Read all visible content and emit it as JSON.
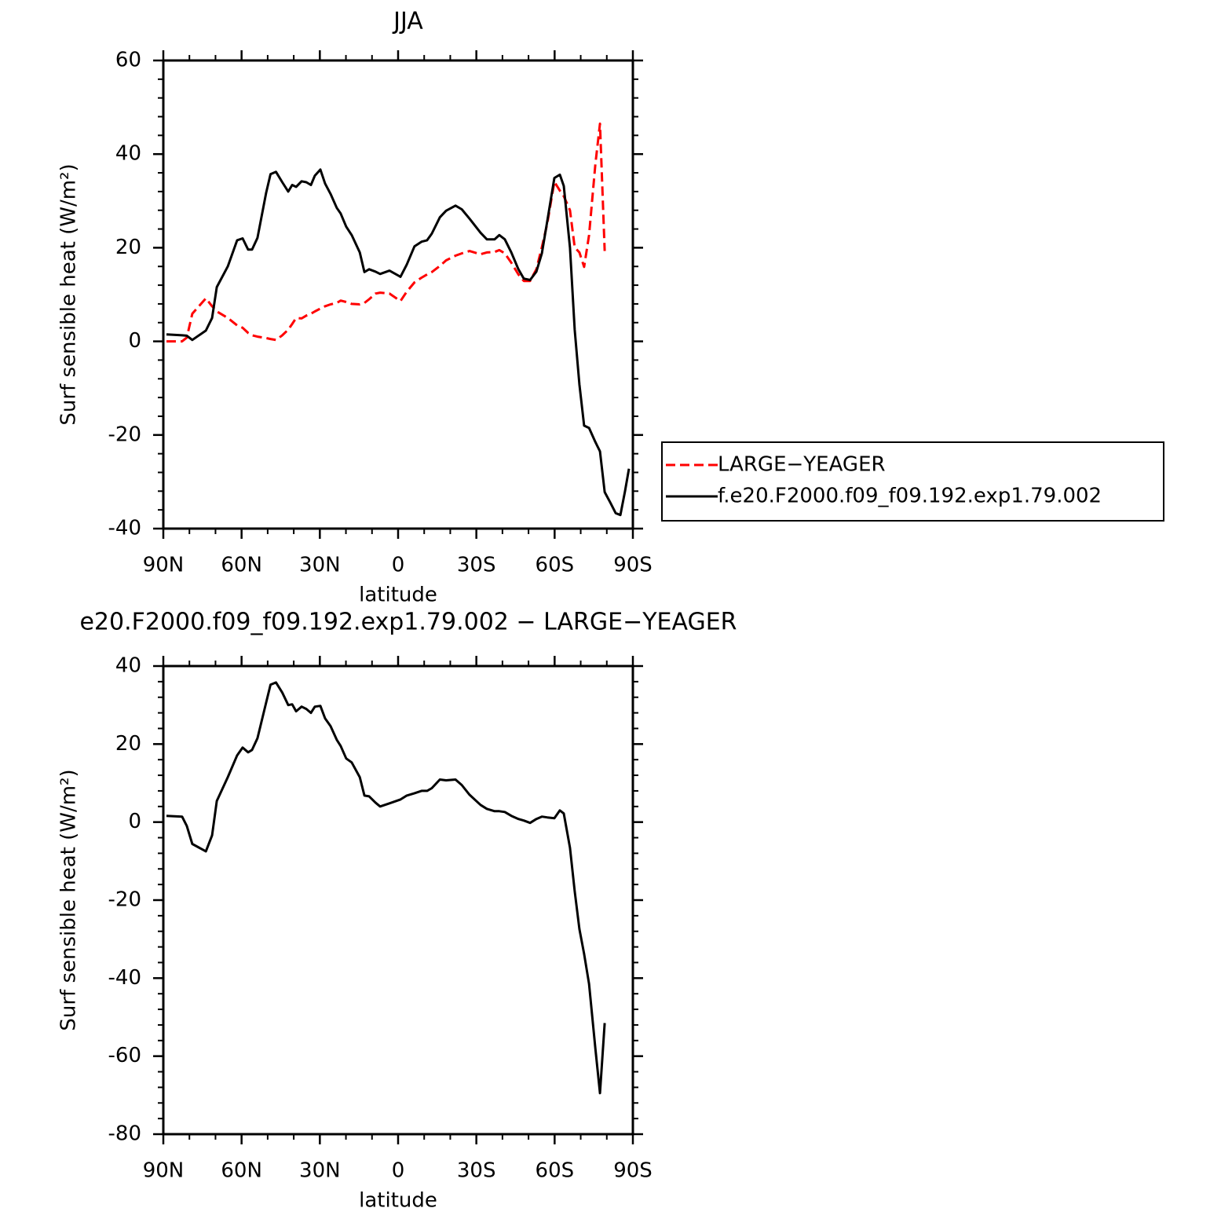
{
  "chart_data": [
    {
      "type": "line",
      "title": "JJA",
      "xlabel": "latitude",
      "ylabel": "Surf sensible heat (W/m²)",
      "x": [
        88.8,
        82.8,
        81.0,
        78.9,
        73.7,
        71.3,
        69.5,
        65.3,
        61.7,
        59.6,
        57.5,
        56.0,
        53.9,
        50.6,
        48.9,
        46.8,
        44.4,
        42.1,
        40.6,
        39.1,
        37.0,
        35.2,
        33.4,
        31.9,
        29.8,
        28.0,
        25.9,
        23.5,
        22.0,
        19.9,
        17.8,
        14.7,
        12.9,
        11.1,
        8.7,
        6.9,
        3.3,
        -0.9,
        -3.3,
        -6.3,
        -9.0,
        -11.1,
        -12.9,
        -16.0,
        -18.4,
        -22.0,
        -24.4,
        -27.4,
        -31.6,
        -34.0,
        -37.0,
        -38.8,
        -40.9,
        -43.4,
        -46.1,
        -48.2,
        -50.6,
        -53.0,
        -55.1,
        -57.2,
        -59.9,
        -62.0,
        -63.5,
        -65.9,
        -67.7,
        -69.5,
        -71.3,
        -73.2,
        -75.6,
        -77.4,
        -79.2,
        -81.3,
        -83.4,
        -85.2,
        -87.0,
        -88.5
      ],
      "series": [
        {
          "name": "LARGE−YEAGER",
          "color": "#ff0000",
          "line_style": "dashed",
          "values": [
            0,
            0,
            0.8,
            5.9,
            9.2,
            7.5,
            6.4,
            5,
            3.4,
            2.9,
            1.8,
            1.3,
            1,
            0.7,
            0.5,
            0.3,
            1.3,
            2.5,
            3.7,
            5,
            4.9,
            5.5,
            5.9,
            6.4,
            7,
            7.5,
            7.9,
            8.2,
            8.7,
            8.4,
            8,
            7.9,
            8.2,
            9,
            10.2,
            10.4,
            10.2,
            8.6,
            10.6,
            12.6,
            13.6,
            14.3,
            14.8,
            16.1,
            17.3,
            18.3,
            18.8,
            19.3,
            18.6,
            19,
            19.1,
            19.5,
            18.8,
            16.8,
            14.3,
            12.9,
            12.9,
            15.4,
            20.1,
            25.2,
            34.1,
            32.2,
            31,
            28,
            20.1,
            19,
            15.9,
            22.7,
            37.8,
            46.5,
            19.3,
            null,
            null,
            null,
            null,
            null
          ]
        },
        {
          "name": "f.e20.F2000.f09_f09.192.exp1.79.002",
          "color": "#000000",
          "line_style": "solid",
          "values": [
            1.5,
            1.3,
            1.2,
            0.3,
            2.3,
            5,
            11.6,
            16,
            21.6,
            22,
            19.6,
            19.6,
            22.1,
            31.7,
            35.7,
            36.2,
            34,
            32,
            33.4,
            33,
            34.2,
            34,
            33.4,
            35.4,
            36.7,
            33.7,
            31.5,
            28.5,
            27.3,
            24.5,
            22.7,
            19,
            14.8,
            15.4,
            14.9,
            14.4,
            15.1,
            13.8,
            16.4,
            20.3,
            21.3,
            21.6,
            23,
            26.5,
            27.9,
            29,
            28.2,
            26.2,
            23.2,
            21.8,
            21.8,
            22.7,
            21.8,
            19,
            15.4,
            13.4,
            13.1,
            14.9,
            18.8,
            25.7,
            34.9,
            35.6,
            33.2,
            20,
            2.5,
            -9.2,
            -18,
            -18.5,
            -21.5,
            -23.5,
            -32.2,
            -34.4,
            -36.7,
            -37.1,
            -32,
            -27.2
          ]
        }
      ],
      "xlim": [
        90,
        -90
      ],
      "xticks": [
        {
          "value": 90,
          "label": "90N"
        },
        {
          "value": 60,
          "label": "60N"
        },
        {
          "value": 30,
          "label": "30N"
        },
        0,
        {
          "value": -30,
          "label": "30S"
        },
        {
          "value": -60,
          "label": "60S"
        },
        {
          "value": -90,
          "label": "90S"
        }
      ],
      "ylim": [
        -40,
        60
      ],
      "yticks": [
        -40,
        -20,
        0,
        20,
        40,
        60
      ],
      "legend": "outside right"
    },
    {
      "type": "line",
      "title": "e20.F2000.f09_f09.192.exp1.79.002 − LARGE−YEAGER",
      "xlabel": "latitude",
      "ylabel": "Surf sensible heat (W/m²)",
      "x": [
        88.8,
        82.8,
        81.0,
        78.9,
        73.7,
        71.3,
        69.5,
        65.3,
        61.7,
        59.6,
        57.5,
        56.0,
        53.9,
        50.6,
        48.9,
        46.8,
        44.4,
        42.1,
        40.6,
        39.1,
        37.0,
        35.2,
        33.4,
        31.9,
        29.8,
        28.0,
        25.9,
        23.5,
        22.0,
        19.9,
        17.8,
        14.7,
        12.9,
        11.1,
        8.7,
        6.9,
        3.3,
        -0.9,
        -3.3,
        -6.3,
        -9.0,
        -11.1,
        -12.9,
        -16.0,
        -18.4,
        -22.0,
        -24.4,
        -27.4,
        -31.6,
        -34.0,
        -37.0,
        -38.8,
        -40.9,
        -43.4,
        -46.1,
        -48.2,
        -50.6,
        -53.0,
        -55.1,
        -57.2,
        -59.9,
        -62.0,
        -63.5,
        -65.9,
        -67.7,
        -69.5,
        -71.3,
        -73.2,
        -75.6,
        -77.4,
        -79.2,
        -81.3,
        -83.4,
        -85.2,
        -87.0,
        -88.5
      ],
      "series": [
        {
          "color": "#000000",
          "line_style": "solid",
          "values": [
            1.6,
            1.4,
            -1,
            -5.6,
            -7.5,
            -3.4,
            5.4,
            11.5,
            17.1,
            19.1,
            17.9,
            18.5,
            21.5,
            30.6,
            35.2,
            35.8,
            33.2,
            30,
            30.2,
            28.4,
            29.6,
            29,
            28,
            29.6,
            29.8,
            26.6,
            24.6,
            21.1,
            19.5,
            16.3,
            15.3,
            11.5,
            6.8,
            6.6,
            5,
            4,
            4.8,
            5.8,
            6.8,
            7.4,
            8,
            8,
            8.7,
            10.9,
            10.7,
            10.9,
            9.5,
            7,
            4.4,
            3.4,
            2.8,
            2.8,
            2.6,
            1.6,
            0.8,
            0.4,
            -0.2,
            0.8,
            1.4,
            1.2,
            1,
            3,
            2.2,
            -6.6,
            -17.7,
            -27.4,
            -33.8,
            -41.5,
            -58,
            -69.5,
            -51.5,
            null,
            null,
            null,
            null,
            null
          ]
        }
      ],
      "xlim": [
        90,
        -90
      ],
      "xticks": [
        {
          "value": 90,
          "label": "90N"
        },
        {
          "value": 60,
          "label": "60N"
        },
        {
          "value": 30,
          "label": "30N"
        },
        0,
        {
          "value": -30,
          "label": "30S"
        },
        {
          "value": -60,
          "label": "60S"
        },
        {
          "value": -90,
          "label": "90S"
        }
      ],
      "ylim": [
        -80,
        40
      ],
      "yticks": [
        -80,
        -60,
        -40,
        -20,
        0,
        20,
        40
      ]
    }
  ]
}
